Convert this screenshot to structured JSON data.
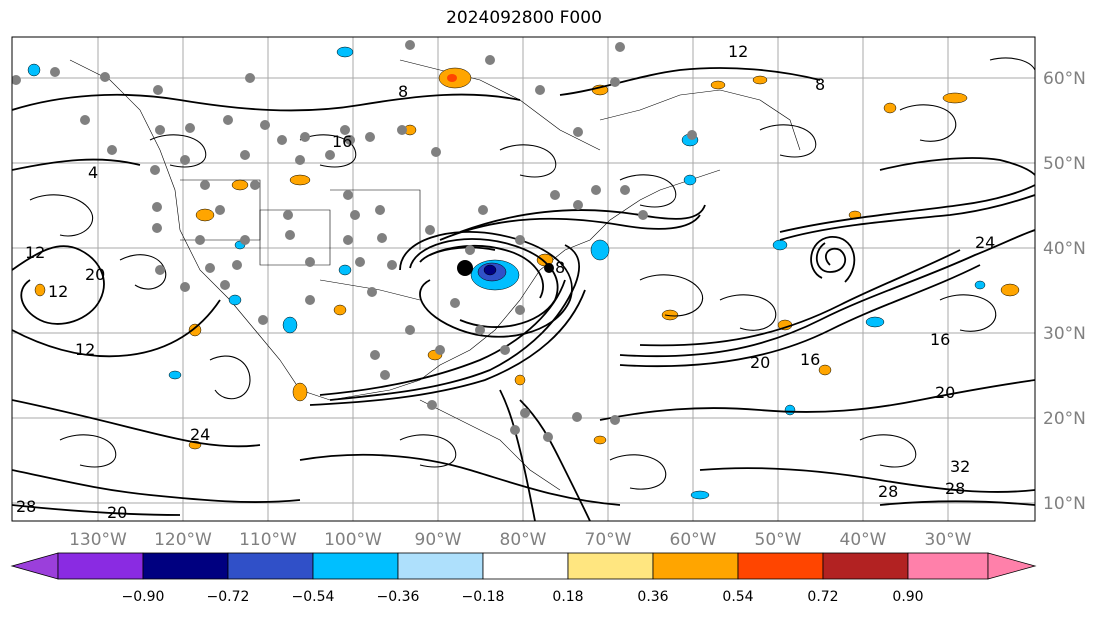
{
  "title": "2024092800 F000",
  "lon_labels": [
    "130°W",
    "120°W",
    "110°W",
    "100°W",
    "90°W",
    "80°W",
    "70°W",
    "60°W",
    "50°W",
    "40°W",
    "30°W"
  ],
  "lat_labels": [
    "60°N",
    "50°N",
    "40°N",
    "30°N",
    "20°N",
    "10°N"
  ],
  "colorbar": {
    "ticks": [
      "−0.90",
      "−0.72",
      "−0.54",
      "−0.36",
      "−0.18",
      "0.18",
      "0.36",
      "0.54",
      "0.72",
      "0.90"
    ],
    "colors": [
      "#9b3fdb",
      "#8a2be2",
      "#000080",
      "#3050c8",
      "#00bfff",
      "#aee0fc",
      "#ffffff",
      "#ffe680",
      "#ffa500",
      "#ff4500",
      "#b22222",
      "#ff80aa"
    ]
  },
  "contour_labels": [
    "12",
    "4",
    "8",
    "12",
    "12",
    "8",
    "16",
    "28",
    "20",
    "28",
    "20",
    "24",
    "16",
    "20",
    "32",
    "28",
    "24",
    "16",
    "8",
    "20",
    "12"
  ],
  "map_colors": {
    "grid": "#a9a9a9",
    "contour": "#000000",
    "station": "#808080",
    "orange": "#ffa500",
    "blue": "#00bfff",
    "darkblue": "#3050c8"
  }
}
